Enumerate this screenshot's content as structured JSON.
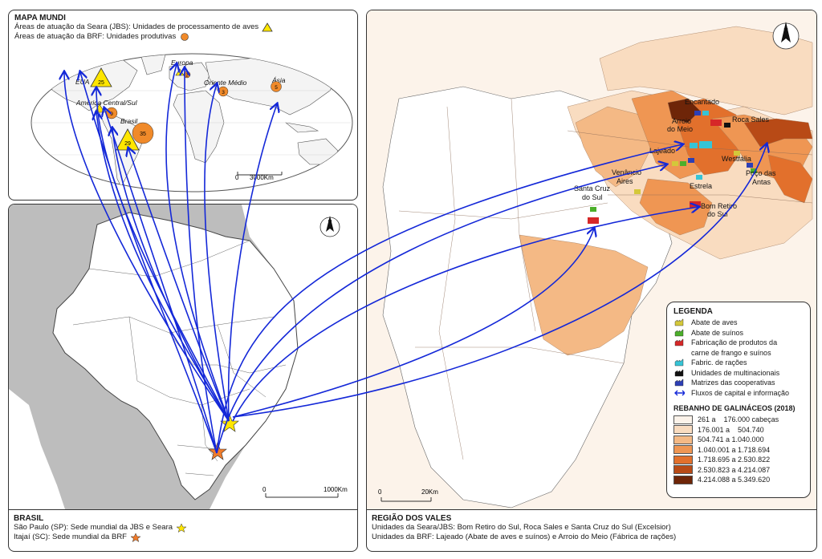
{
  "mundi": {
    "title": "MAPA MUNDI",
    "line1": "Áreas de atuação da Seara (JBS): Unidades de processamento de aves",
    "line2": "Áreas de atuação da BRF: Unidades produtivas",
    "scale": "3000Km",
    "scale_zero": "0",
    "places": {
      "eua": "EUA",
      "europa": "Europa",
      "oriente": "Oriente Médio",
      "asia": "Ásia",
      "america_central": "América Central/Sul",
      "brasil": "Brasil"
    },
    "numbers": {
      "eua_jbs": "25",
      "europa_brf": "2",
      "oriente_brf": "3",
      "asia_brf": "5",
      "amc_brf": "9",
      "brasil_jbs": "29",
      "brasil_brf": "35"
    }
  },
  "brasil": {
    "title": "BRASIL",
    "line1": "São Paulo (SP): Sede mundial da JBS e Seara",
    "line2": "Itajaí (SC): Sede mundial da BRF",
    "scale_zero": "0",
    "scale": "1000Km"
  },
  "vales": {
    "title": "REGIÃO DOS VALES",
    "line1": "Unidades da Seara/JBS: Bom Retiro do Sul, Roca Sales e Santa Cruz do Sul (Excelsior)",
    "line2": "Unidades da BRF: Lajeado (Abate de aves e suínos) e Arroio do Meio (Fábrica de rações)",
    "scale_zero": "0",
    "scale": "20Km",
    "cities": {
      "encantado": "Encantado",
      "arroio1": "Arroio",
      "arroio2": "do Meio",
      "roca": "Roca Sales",
      "lajeado": "Lajeado",
      "westfalia": "Westfália",
      "poco1": "Poço das",
      "poco2": "Antas",
      "venancio1": "Venâncio",
      "venancio2": "Aires",
      "estrela": "Estrela",
      "santacruz1": "Santa Cruz",
      "santacruz2": "do Sul",
      "bomretiro1": "Bom Retiro",
      "bomretiro2": "do Sul"
    }
  },
  "legend": {
    "title": "LEGENDA",
    "items": [
      {
        "label": "Abate de aves",
        "icon": "factory-icon",
        "color": "#d4c83a"
      },
      {
        "label": "Abate de suínos",
        "icon": "factory-icon",
        "color": "#4caf2a"
      },
      {
        "label": "Fabricação de produtos da",
        "icon": "factory-icon",
        "color": "#d62828"
      },
      {
        "label": "carne de frango e suínos",
        "icon": "",
        "color": ""
      },
      {
        "label": "Fabric. de rações",
        "icon": "factory-icon",
        "color": "#36c4d6"
      },
      {
        "label": "Unidades de multinacionais",
        "icon": "factory-icon",
        "color": "#111111"
      },
      {
        "label": "Matrizes das cooperativas",
        "icon": "factory-icon",
        "color": "#2d3fb5"
      },
      {
        "label": "Fluxos de capital e informação",
        "icon": "double-arrow-icon",
        "color": "#1428d8"
      }
    ],
    "rebanho_title": "REBANHO DE GALINÁCEOS (2018)",
    "classes": [
      {
        "label": "261 a    176.000 cabeças",
        "color": "#fcf3ea"
      },
      {
        "label": "176.001 a    504.740",
        "color": "#f9dcc0"
      },
      {
        "label": "504.741 a 1.040.000",
        "color": "#f4b985"
      },
      {
        "label": "1.040.001 a 1.718.694",
        "color": "#ef9653"
      },
      {
        "label": "1.718.695 a 2.530.822",
        "color": "#e2702c"
      },
      {
        "label": "2.530.823 a 4.214.087",
        "color": "#b84a16"
      },
      {
        "label": "4.214.088 a 5.349.620",
        "color": "#6e2508"
      }
    ]
  }
}
